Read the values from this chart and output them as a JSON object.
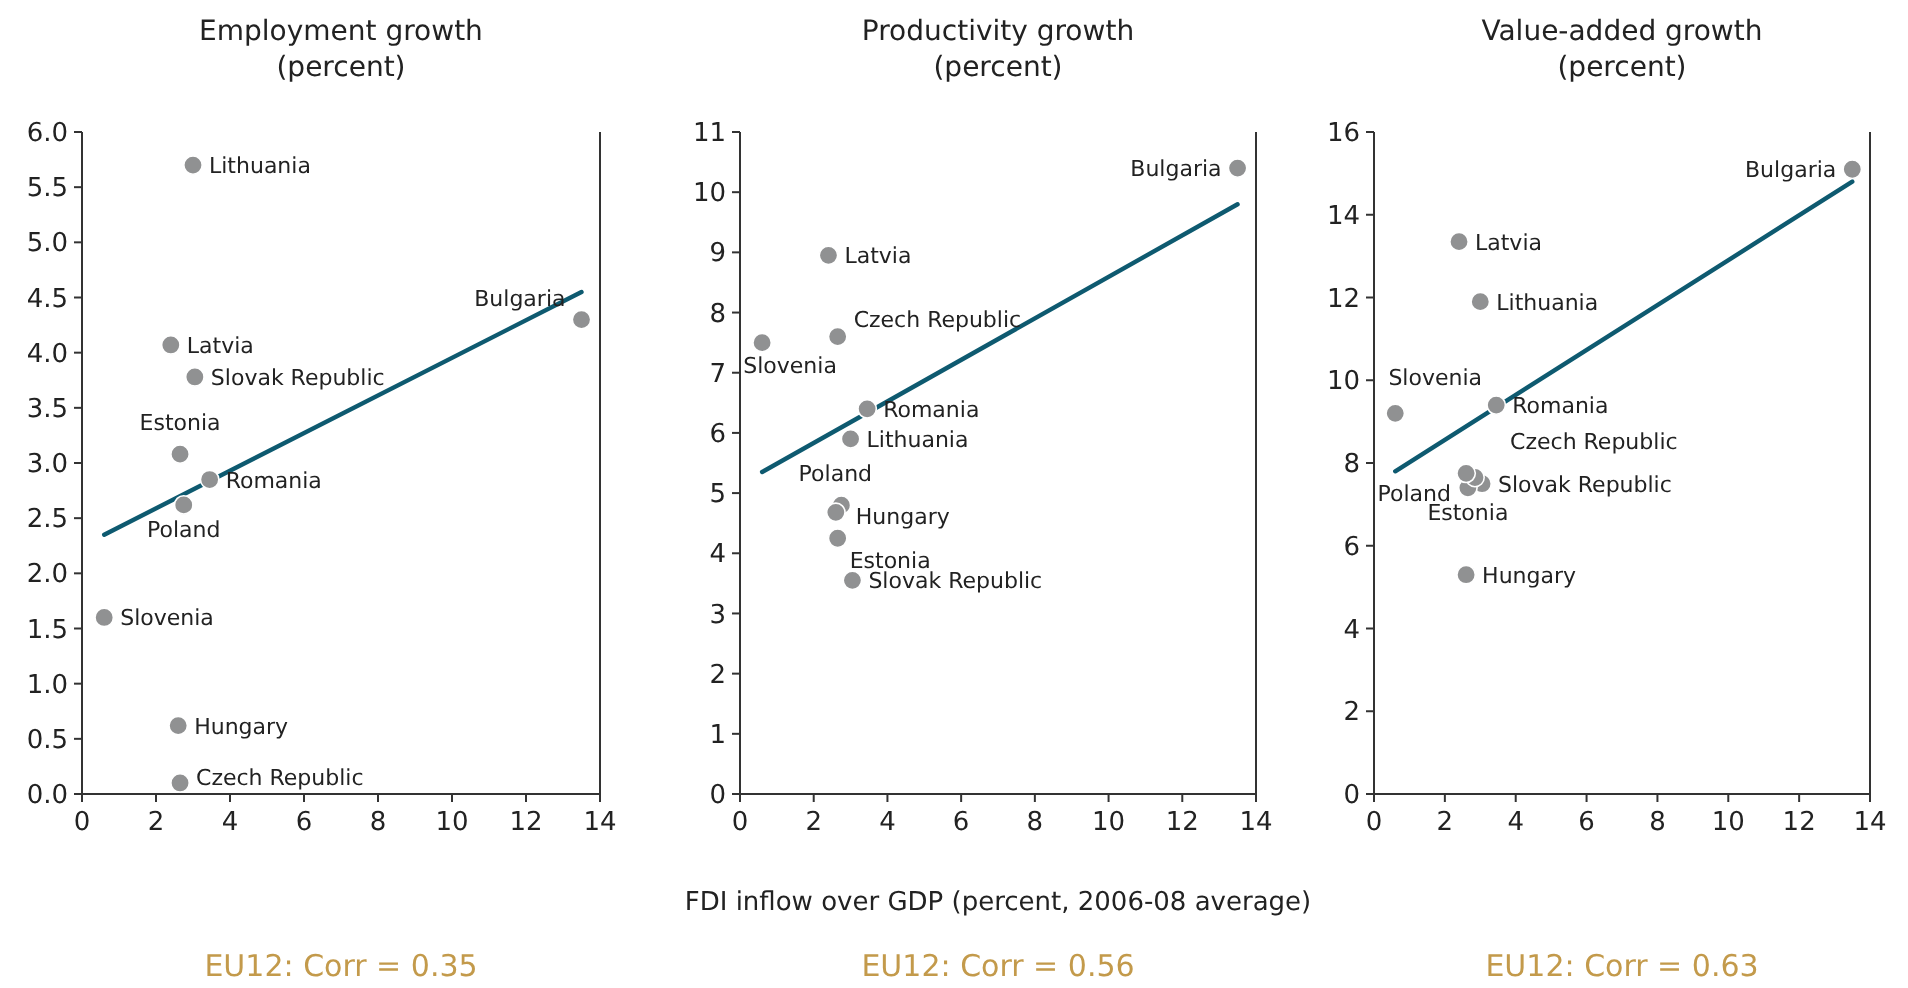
{
  "chart_data": [
    {
      "type": "scatter",
      "title": "Employment growth\n(percent)",
      "xlim": [
        0,
        14
      ],
      "xticks": [
        0,
        2,
        4,
        6,
        8,
        10,
        12,
        14
      ],
      "ylim": [
        0,
        6
      ],
      "yticks": [
        {
          "value": 0,
          "label": "0.0"
        },
        0.5,
        {
          "value": 1,
          "label": "1.0"
        },
        1.5,
        {
          "value": 2,
          "label": "2.0"
        },
        2.5,
        {
          "value": 3,
          "label": "3.0"
        },
        3.5,
        {
          "value": 4,
          "label": "4.0"
        },
        4.5,
        {
          "value": 5,
          "label": "5.0"
        },
        5.5,
        {
          "value": 6,
          "label": "6.0"
        }
      ],
      "marker": "circle",
      "series": [
        {
          "color": "#909192",
          "x": [
            3.0,
            2.4,
            3.05,
            2.65,
            3.45,
            2.75,
            0.6,
            2.6,
            2.65,
            13.5
          ],
          "values": [
            5.7,
            4.07,
            3.78,
            3.08,
            2.85,
            2.62,
            1.6,
            0.62,
            0.1,
            4.3
          ]
        },
        {
          "type": "line",
          "marker": "none",
          "color": "#0e5a70",
          "x": [
            0.6,
            13.5
          ],
          "values": [
            2.35,
            4.55
          ]
        }
      ],
      "annotations": [
        {
          "text": "Lithuania",
          "x": 3.0,
          "y": 5.7
        },
        {
          "text": "Latvia",
          "x": 2.4,
          "y": 4.07
        },
        {
          "text": "Slovak Republic",
          "x": 3.05,
          "y": 3.78
        },
        {
          "text": "Estonia",
          "x": 2.65,
          "y": 3.08
        },
        {
          "text": "Romania",
          "x": 3.45,
          "y": 2.85
        },
        {
          "text": "Poland",
          "x": 2.75,
          "y": 2.62
        },
        {
          "text": "Slovenia",
          "x": 0.6,
          "y": 1.6
        },
        {
          "text": "Hungary",
          "x": 2.6,
          "y": 0.62
        },
        {
          "text": "Czech Republic",
          "x": 2.65,
          "y": 0.1
        },
        {
          "text": "Bulgaria",
          "x": 13.5,
          "y": 4.3
        },
        "EU12: Corr = 0.35"
      ]
    },
    {
      "type": "scatter",
      "title": "Productivity growth\n(percent)",
      "xlabel": "FDI inflow over GDP (percent, 2006-08 average)",
      "xlim": [
        0,
        14
      ],
      "xticks": [
        0,
        2,
        4,
        6,
        8,
        10,
        12,
        14
      ],
      "ylim": [
        0,
        11
      ],
      "yticks": [
        0,
        1,
        2,
        3,
        4,
        5,
        6,
        7,
        8,
        9,
        10,
        11
      ],
      "marker": "circle",
      "series": [
        {
          "color": "#909192",
          "x": [
            3.0,
            2.4,
            3.05,
            2.65,
            3.45,
            2.75,
            0.6,
            2.6,
            2.65,
            13.5
          ],
          "values": [
            5.9,
            8.95,
            3.55,
            4.25,
            6.4,
            4.8,
            7.5,
            4.68,
            7.6,
            10.4
          ]
        },
        {
          "type": "line",
          "marker": "none",
          "color": "#0e5a70",
          "x": [
            0.6,
            13.5
          ],
          "values": [
            5.35,
            9.8
          ]
        }
      ],
      "annotations": [
        {
          "text": "Lithuania",
          "x": 3.0,
          "y": 5.9
        },
        {
          "text": "Latvia",
          "x": 2.4,
          "y": 8.95
        },
        {
          "text": "Slovak Republic",
          "x": 3.05,
          "y": 3.55
        },
        {
          "text": "Estonia",
          "x": 2.65,
          "y": 4.25
        },
        {
          "text": "Romania",
          "x": 3.45,
          "y": 6.4
        },
        {
          "text": "Poland",
          "x": 2.75,
          "y": 4.8
        },
        {
          "text": "Slovenia",
          "x": 0.6,
          "y": 7.5
        },
        {
          "text": "Hungary",
          "x": 2.6,
          "y": 4.68
        },
        {
          "text": "Czech Republic",
          "x": 2.65,
          "y": 7.6
        },
        {
          "text": "Bulgaria",
          "x": 13.5,
          "y": 10.4
        },
        "EU12: Corr = 0.56"
      ]
    },
    {
      "type": "scatter",
      "title": "Value-added growth\n(percent)",
      "xlim": [
        0,
        14
      ],
      "xticks": [
        0,
        2,
        4,
        6,
        8,
        10,
        12,
        14
      ],
      "ylim": [
        0,
        16
      ],
      "yticks": [
        0,
        2,
        4,
        6,
        8,
        10,
        12,
        14,
        16
      ],
      "marker": "circle",
      "series": [
        {
          "color": "#909192",
          "x": [
            3.0,
            2.4,
            3.05,
            2.65,
            3.45,
            2.85,
            0.6,
            2.6,
            2.6,
            13.5
          ],
          "values": [
            11.9,
            13.35,
            7.5,
            7.4,
            9.4,
            7.65,
            9.2,
            5.3,
            7.75,
            15.1
          ]
        },
        {
          "type": "line",
          "marker": "none",
          "color": "#0e5a70",
          "x": [
            0.6,
            13.5
          ],
          "values": [
            7.8,
            14.8
          ]
        }
      ],
      "annotations": [
        {
          "text": "Lithuania",
          "x": 3.0,
          "y": 11.9
        },
        {
          "text": "Latvia",
          "x": 2.4,
          "y": 13.35
        },
        {
          "text": "Slovak Republic",
          "x": 3.05,
          "y": 7.5
        },
        {
          "text": "Estonia",
          "x": 2.65,
          "y": 7.4
        },
        {
          "text": "Romania",
          "x": 3.45,
          "y": 9.4
        },
        {
          "text": "Poland",
          "x": 2.85,
          "y": 7.65
        },
        {
          "text": "Slovenia",
          "x": 0.6,
          "y": 9.2
        },
        {
          "text": "Hungary",
          "x": 2.6,
          "y": 5.3
        },
        {
          "text": "Czech Republic",
          "x": 2.6,
          "y": 7.75
        },
        {
          "text": "Bulgaria",
          "x": 13.5,
          "y": 15.1
        },
        "EU12: Corr = 0.63"
      ]
    }
  ]
}
